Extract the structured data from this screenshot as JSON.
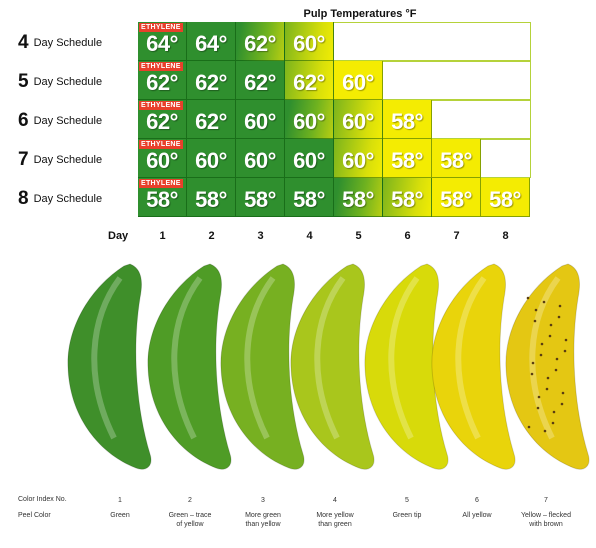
{
  "title": "Pulp Temperatures °F",
  "ethylene_label": "ETHYLENE",
  "day_label": "Day",
  "days": [
    "1",
    "2",
    "3",
    "4",
    "5",
    "6",
    "7",
    "8"
  ],
  "schedules": [
    {
      "num": "4",
      "label": "Day Schedule",
      "temps": [
        "64°",
        "64°",
        "62°",
        "60°"
      ]
    },
    {
      "num": "5",
      "label": "Day Schedule",
      "temps": [
        "62°",
        "62°",
        "62°",
        "62°",
        "60°"
      ]
    },
    {
      "num": "6",
      "label": "Day Schedule",
      "temps": [
        "62°",
        "62°",
        "60°",
        "60°",
        "60°",
        "58°"
      ]
    },
    {
      "num": "7",
      "label": "Day Schedule",
      "temps": [
        "60°",
        "60°",
        "60°",
        "60°",
        "60°",
        "58°",
        "58°"
      ]
    },
    {
      "num": "8",
      "label": "Day Schedule",
      "temps": [
        "58°",
        "58°",
        "58°",
        "58°",
        "58°",
        "58°",
        "58°",
        "58°"
      ]
    }
  ],
  "footer": {
    "color_index_label": "Color Index No.",
    "peel_color_label": "Peel Color",
    "items": [
      {
        "index": "1",
        "peel": [
          "Green"
        ],
        "color": "#3f8f2a"
      },
      {
        "index": "2",
        "peel": [
          "Green – trace",
          "of yellow"
        ],
        "color": "#4f9c26"
      },
      {
        "index": "3",
        "peel": [
          "More green",
          "than yellow"
        ],
        "color": "#77b021"
      },
      {
        "index": "4",
        "peel": [
          "More yellow",
          "than green"
        ],
        "color": "#a9c61c"
      },
      {
        "index": "5",
        "peel": [
          "Green tip"
        ],
        "color": "#d8da0a"
      },
      {
        "index": "6",
        "peel": [
          "All yellow"
        ],
        "color": "#e9d40b"
      },
      {
        "index": "7",
        "peel": [
          "Yellow – flecked",
          "with brown"
        ],
        "color": "#e4c713"
      }
    ]
  }
}
